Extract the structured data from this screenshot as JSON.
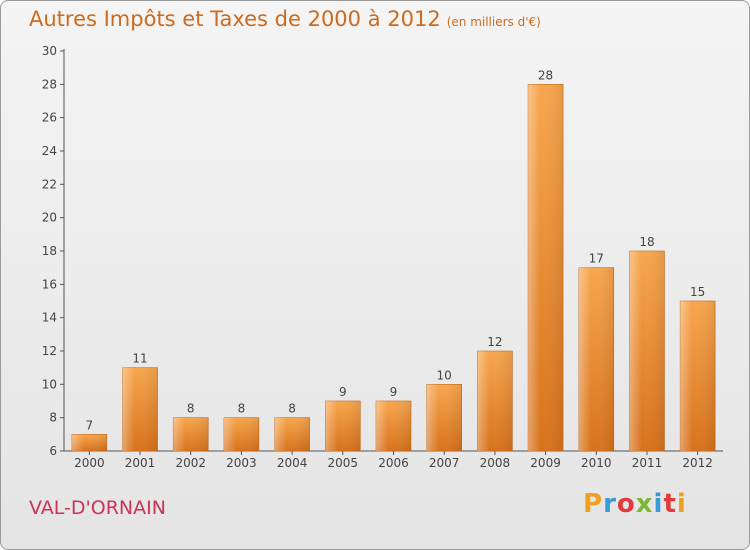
{
  "header": {
    "title": "Autres Impôts et Taxes de 2000 à 2012",
    "unit": "(en milliers d'€)"
  },
  "footer": {
    "commune": "VAL-D'ORNAIN",
    "logo_text": "Proxiti",
    "logo_colors": [
      "#f0a020",
      "#3a9ad9",
      "#e23b3b",
      "#7ab833",
      "#3a9ad9",
      "#e23b3b",
      "#f0a020"
    ]
  },
  "chart_data": {
    "type": "bar",
    "title": "Autres Impôts et Taxes de 2000 à 2012",
    "subtitle": "(en milliers d'€)",
    "xlabel": "",
    "ylabel": "",
    "categories": [
      "2000",
      "2001",
      "2002",
      "2003",
      "2004",
      "2005",
      "2006",
      "2007",
      "2008",
      "2009",
      "2010",
      "2011",
      "2012"
    ],
    "values": [
      7,
      11,
      8,
      8,
      8,
      9,
      9,
      10,
      12,
      28,
      17,
      18,
      15
    ],
    "data_labels": [
      "7",
      "11",
      "8",
      "8",
      "8",
      "9",
      "9",
      "10",
      "12",
      "28",
      "17",
      "18",
      "15"
    ],
    "ylim": [
      6,
      30
    ],
    "yticks": [
      6,
      8,
      10,
      12,
      14,
      16,
      18,
      20,
      22,
      24,
      26,
      28,
      30
    ],
    "grid": false,
    "legend": "none",
    "bar_color_top": "#f7a64e",
    "bar_color_bottom": "#d8721c",
    "axis_color": "#555555",
    "text_color": "#444444"
  }
}
